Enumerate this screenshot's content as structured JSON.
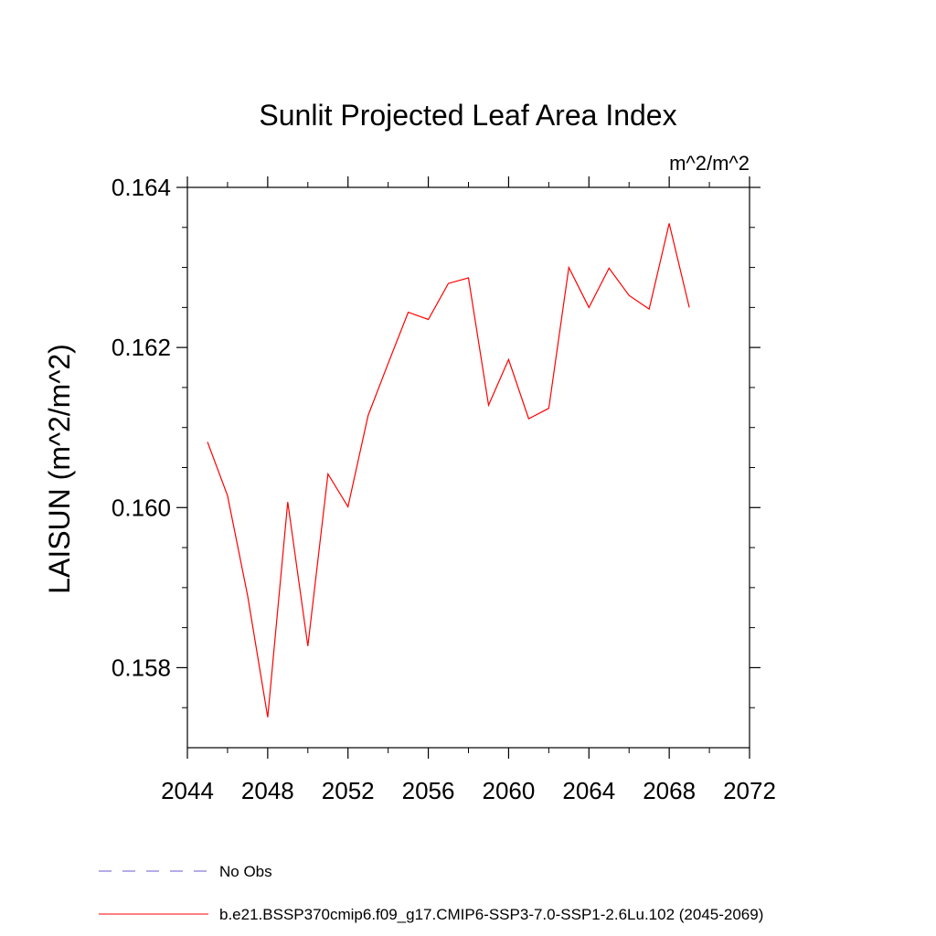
{
  "chart_data": {
    "type": "line",
    "title": "Sunlit Projected Leaf Area Index",
    "units_label": "m^2/m^2",
    "ylabel": "LAISUN  (m^2/m^2)",
    "xlabel": "",
    "xlim": [
      2044,
      2072
    ],
    "ylim": [
      0.157,
      0.164
    ],
    "x_ticks": [
      2044,
      2048,
      2052,
      2056,
      2060,
      2064,
      2068,
      2072
    ],
    "x_tick_labels": [
      "2044",
      "2048",
      "2052",
      "2056",
      "2060",
      "2064",
      "2068",
      "2072"
    ],
    "y_ticks": [
      0.158,
      0.16,
      0.162,
      0.164
    ],
    "y_tick_labels": [
      "0.158",
      "0.160",
      "0.162",
      "0.164"
    ],
    "grid": false,
    "series": [
      {
        "name": "b.e21.BSSP370cmip6.f09_g17.CMIP6-SSP3-7.0-SSP1-2.6Lu.102 (2045-2069)",
        "color": "#ff0000",
        "x": [
          2045,
          2046,
          2047,
          2048,
          2049,
          2050,
          2051,
          2052,
          2053,
          2054,
          2055,
          2056,
          2057,
          2058,
          2059,
          2060,
          2061,
          2062,
          2063,
          2064,
          2065,
          2066,
          2067,
          2068,
          2069
        ],
        "values": [
          0.16082,
          0.16015,
          0.1589,
          0.15738,
          0.16007,
          0.15827,
          0.16042,
          0.16001,
          0.16115,
          0.1618,
          0.16244,
          0.16235,
          0.1628,
          0.16287,
          0.16128,
          0.16185,
          0.16111,
          0.16124,
          0.163,
          0.1625,
          0.16299,
          0.16265,
          0.16248,
          0.16355,
          0.1625
        ]
      }
    ],
    "legend": {
      "placement": "bottom-left",
      "entries": [
        {
          "label": "No Obs",
          "color": "#6a5acd",
          "style": "dashed"
        },
        {
          "label": "b.e21.BSSP370cmip6.f09_g17.CMIP6-SSP3-7.0-SSP1-2.6Lu.102 (2045-2069)",
          "color": "#ff0000",
          "style": "solid"
        }
      ]
    }
  }
}
